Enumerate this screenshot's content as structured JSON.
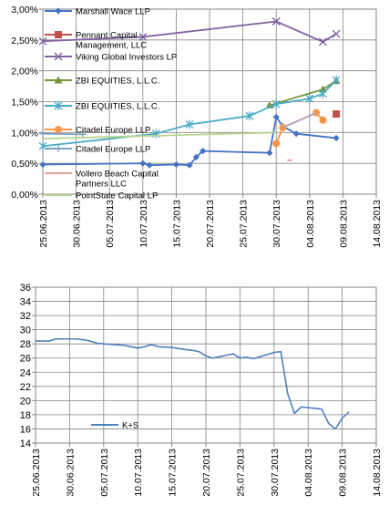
{
  "chart_data": [
    {
      "type": "line",
      "ylim": [
        0,
        3.0
      ],
      "yticks": [
        "0,00%",
        "0,50%",
        "1,00%",
        "1,50%",
        "2,00%",
        "2,50%",
        "3,00%"
      ],
      "xticks": [
        "25.06.2013",
        "30.06.2013",
        "05.07.2013",
        "10.07.2013",
        "15.07.2013",
        "20.07.2013",
        "25.07.2013",
        "30.07.2013",
        "04.08.2013",
        "09.08.2013",
        "14.08.2013"
      ],
      "xrange": [
        "2013-06-25",
        "2013-08-14"
      ],
      "grid": true,
      "legend_position": "top-left",
      "series": [
        {
          "name": "Marshall Wace LLP",
          "color": "#4472c4",
          "marker": "diamond",
          "points": [
            [
              "2013-06-25",
              0.48
            ],
            [
              "2013-07-10",
              0.5
            ],
            [
              "2013-07-11",
              0.47
            ],
            [
              "2013-07-15",
              0.48
            ],
            [
              "2013-07-17",
              0.47
            ],
            [
              "2013-07-18",
              0.6
            ],
            [
              "2013-07-19",
              0.7
            ],
            [
              "2013-07-29",
              0.67
            ],
            [
              "2013-07-30",
              1.25
            ],
            [
              "2013-07-31",
              1.1
            ],
            [
              "2013-08-02",
              0.98
            ],
            [
              "2013-08-08",
              0.91
            ]
          ]
        },
        {
          "name": "Pennant Capital Management, LLC",
          "color": "#c0504d",
          "marker": "square",
          "points": [
            [
              "2013-08-08",
              1.3
            ]
          ]
        },
        {
          "name": "Viking Global Investors LP",
          "color": "#8064a2",
          "marker": "x",
          "points": [
            [
              "2013-06-25",
              2.48
            ],
            [
              "2013-07-10",
              2.55
            ],
            [
              "2013-07-30",
              2.8
            ],
            [
              "2013-08-06",
              2.47
            ],
            [
              "2013-08-08",
              2.6
            ]
          ]
        },
        {
          "name": "ZBI EQUITIES, L.L.C.",
          "color": "#77933c",
          "marker": "triangle",
          "points": [
            [
              "2013-07-29",
              1.44
            ],
            [
              "2013-08-06",
              1.7
            ],
            [
              "2013-08-08",
              1.84
            ]
          ]
        },
        {
          "name": "ZBI EQUITIES, L.L.C.",
          "color": "#4bacc6",
          "marker": "star",
          "points": [
            [
              "2013-06-25",
              0.78
            ],
            [
              "2013-07-12",
              0.98
            ],
            [
              "2013-07-17",
              1.13
            ],
            [
              "2013-07-26",
              1.27
            ],
            [
              "2013-07-30",
              1.46
            ],
            [
              "2013-08-04",
              1.55
            ],
            [
              "2013-08-06",
              1.63
            ],
            [
              "2013-08-08",
              1.85
            ]
          ]
        },
        {
          "name": "Citadel Europe LLP",
          "color": "#f79646",
          "marker": "circle",
          "points": [
            [
              "2013-07-30",
              0.82
            ],
            [
              "2013-07-31",
              1.08
            ],
            [
              "2013-08-05",
              1.32
            ],
            [
              "2013-08-06",
              1.2
            ]
          ]
        },
        {
          "name": "Citadel Europe LLP",
          "color": "#7f9fc8",
          "marker": "plus",
          "points": [
            [
              "2013-06-25",
              0.98
            ],
            [
              "2013-07-01",
              0.97
            ]
          ]
        },
        {
          "name": "Vollero Beach Capital Partners LLC",
          "color": "#e6a09e",
          "marker": "dash",
          "points": [
            [
              "2013-08-01",
              0.55
            ]
          ]
        },
        {
          "name": "PointState Capital LP",
          "color": "#b8d48c",
          "marker": "none",
          "points": [
            [
              "2013-06-25",
              0.9
            ],
            [
              "2013-07-30",
              1.0
            ]
          ]
        },
        {
          "name": "",
          "color": "#b3a2c7",
          "marker": "none",
          "points": [
            [
              "2013-07-31",
              1.08
            ],
            [
              "2013-08-05",
              1.32
            ]
          ]
        }
      ]
    },
    {
      "type": "line",
      "ylim": [
        14,
        36
      ],
      "yticks": [
        "14",
        "16",
        "18",
        "20",
        "22",
        "24",
        "26",
        "28",
        "30",
        "32",
        "34",
        "36"
      ],
      "xticks": [
        "25.06.2013",
        "30.06.2013",
        "05.07.2013",
        "10.07.2013",
        "15.07.2013",
        "20.07.2013",
        "25.07.2013",
        "30.07.2013",
        "04.08.2013",
        "09.08.2013",
        "14.08.2013"
      ],
      "xrange": [
        "2013-06-25",
        "2013-08-14"
      ],
      "grid": true,
      "legend_position": "left-middle",
      "series": [
        {
          "name": "K+S",
          "color": "#4f81bd",
          "marker": "none",
          "points": [
            [
              "2013-06-25",
              28.4
            ],
            [
              "2013-06-27",
              28.4
            ],
            [
              "2013-06-28",
              28.7
            ],
            [
              "2013-07-01",
              28.7
            ],
            [
              "2013-07-02",
              28.6
            ],
            [
              "2013-07-03",
              28.4
            ],
            [
              "2013-07-04",
              28.1
            ],
            [
              "2013-07-05",
              28.0
            ],
            [
              "2013-07-08",
              27.8
            ],
            [
              "2013-07-09",
              27.6
            ],
            [
              "2013-07-10",
              27.4
            ],
            [
              "2013-07-11",
              27.6
            ],
            [
              "2013-07-12",
              27.9
            ],
            [
              "2013-07-13",
              27.6
            ],
            [
              "2013-07-15",
              27.5
            ],
            [
              "2013-07-17",
              27.2
            ],
            [
              "2013-07-18",
              27.1
            ],
            [
              "2013-07-19",
              26.9
            ],
            [
              "2013-07-20",
              26.3
            ],
            [
              "2013-07-21",
              26.0
            ],
            [
              "2013-07-22",
              26.2
            ],
            [
              "2013-07-23",
              26.4
            ],
            [
              "2013-07-24",
              26.6
            ],
            [
              "2013-07-25",
              26.0
            ],
            [
              "2013-07-26",
              26.1
            ],
            [
              "2013-07-27",
              25.9
            ],
            [
              "2013-07-28",
              26.2
            ],
            [
              "2013-07-29",
              26.5
            ],
            [
              "2013-07-30",
              26.8
            ],
            [
              "2013-07-31",
              26.9
            ],
            [
              "2013-08-01",
              21.0
            ],
            [
              "2013-08-02",
              18.2
            ],
            [
              "2013-08-03",
              19.1
            ],
            [
              "2013-08-04",
              19.0
            ],
            [
              "2013-08-05",
              18.9
            ],
            [
              "2013-08-06",
              18.8
            ],
            [
              "2013-08-07",
              16.8
            ],
            [
              "2013-08-08",
              16.0
            ],
            [
              "2013-08-09",
              17.5
            ],
            [
              "2013-08-10",
              18.4
            ]
          ]
        }
      ]
    }
  ]
}
